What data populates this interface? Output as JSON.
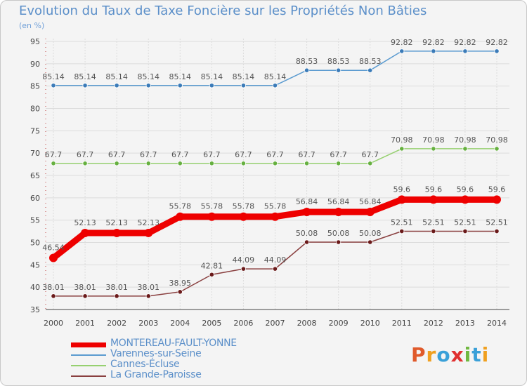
{
  "title": "Evolution du Taux de Taxe Foncière sur les Propriétés Non Bâties",
  "unit": "(en %)",
  "logo": {
    "text": "Proxiti",
    "colors": [
      "#e05a2b",
      "#f0a020",
      "#3aa0d8",
      "#e03030",
      "#70b840",
      "#3aa0d8",
      "#f0a020"
    ]
  },
  "chart_data": {
    "type": "line",
    "title": "Evolution du Taux de Taxe Foncière sur les Propriétés Non Bâties",
    "ylabel": "(en %)",
    "xlabel": "",
    "ylim": [
      35,
      95
    ],
    "yticks": [
      35,
      40,
      45,
      50,
      55,
      60,
      65,
      70,
      75,
      80,
      85,
      90,
      95
    ],
    "categories": [
      "2000",
      "2001",
      "2002",
      "2003",
      "2004",
      "2005",
      "2006",
      "2007",
      "2008",
      "2009",
      "2010",
      "2011",
      "2012",
      "2013",
      "2014"
    ],
    "series": [
      {
        "name": "Varennes-sur-Seine",
        "color": "#5b9bd0",
        "dot": "#3b7bb8",
        "thick": false,
        "values": [
          85.14,
          85.14,
          85.14,
          85.14,
          85.14,
          85.14,
          85.14,
          85.14,
          88.53,
          88.53,
          88.53,
          92.82,
          92.82,
          92.82,
          92.82
        ],
        "labels": [
          "85.14",
          "85.14",
          "85.14",
          "85.14",
          "85.14",
          "85.14",
          "85.14",
          "85.14",
          "88.53",
          "88.53",
          "88.53",
          "92.82",
          "92.82",
          "92.82",
          "92.82"
        ]
      },
      {
        "name": "Cannes-Écluse",
        "color": "#96d070",
        "dot": "#66b040",
        "thick": false,
        "values": [
          67.7,
          67.7,
          67.7,
          67.7,
          67.7,
          67.7,
          67.7,
          67.7,
          67.7,
          67.7,
          67.7,
          70.98,
          70.98,
          70.98,
          70.98
        ],
        "labels": [
          "67.7",
          "67.7",
          "67.7",
          "67.7",
          "67.7",
          "67.7",
          "67.7",
          "67.7",
          "67.7",
          "67.7",
          "67.7",
          "70.98",
          "70.98",
          "70.98",
          "70.98"
        ]
      },
      {
        "name": "MONTEREAU-FAULT-YONNE",
        "color": "#ee0000",
        "dot": "#ee0000",
        "thick": true,
        "values": [
          46.54,
          52.13,
          52.13,
          52.13,
          55.78,
          55.78,
          55.78,
          55.78,
          56.84,
          56.84,
          56.84,
          59.6,
          59.6,
          59.6,
          59.6
        ],
        "labels": [
          "46.54",
          "52.13",
          "52.13",
          "52.13",
          "55.78",
          "55.78",
          "55.78",
          "55.78",
          "56.84",
          "56.84",
          "56.84",
          "59.6",
          "59.6",
          "59.6",
          "59.6"
        ]
      },
      {
        "name": "La Grande-Paroisse",
        "color": "#8a4040",
        "dot": "#6a1a1a",
        "thick": false,
        "values": [
          38.01,
          38.01,
          38.01,
          38.01,
          38.95,
          42.81,
          44.09,
          44.09,
          50.08,
          50.08,
          50.08,
          52.51,
          52.51,
          52.51,
          52.51
        ],
        "labels": [
          "38.01",
          "38.01",
          "38.01",
          "38.01",
          "38.95",
          "42.81",
          "44.09",
          "44.09",
          "50.08",
          "50.08",
          "50.08",
          "52.51",
          "52.51",
          "52.51",
          "52.51"
        ]
      }
    ],
    "legend": [
      "MONTEREAU-FAULT-YONNE",
      "Varennes-sur-Seine",
      "Cannes-Écluse",
      "La Grande-Paroisse"
    ],
    "grid": true
  }
}
